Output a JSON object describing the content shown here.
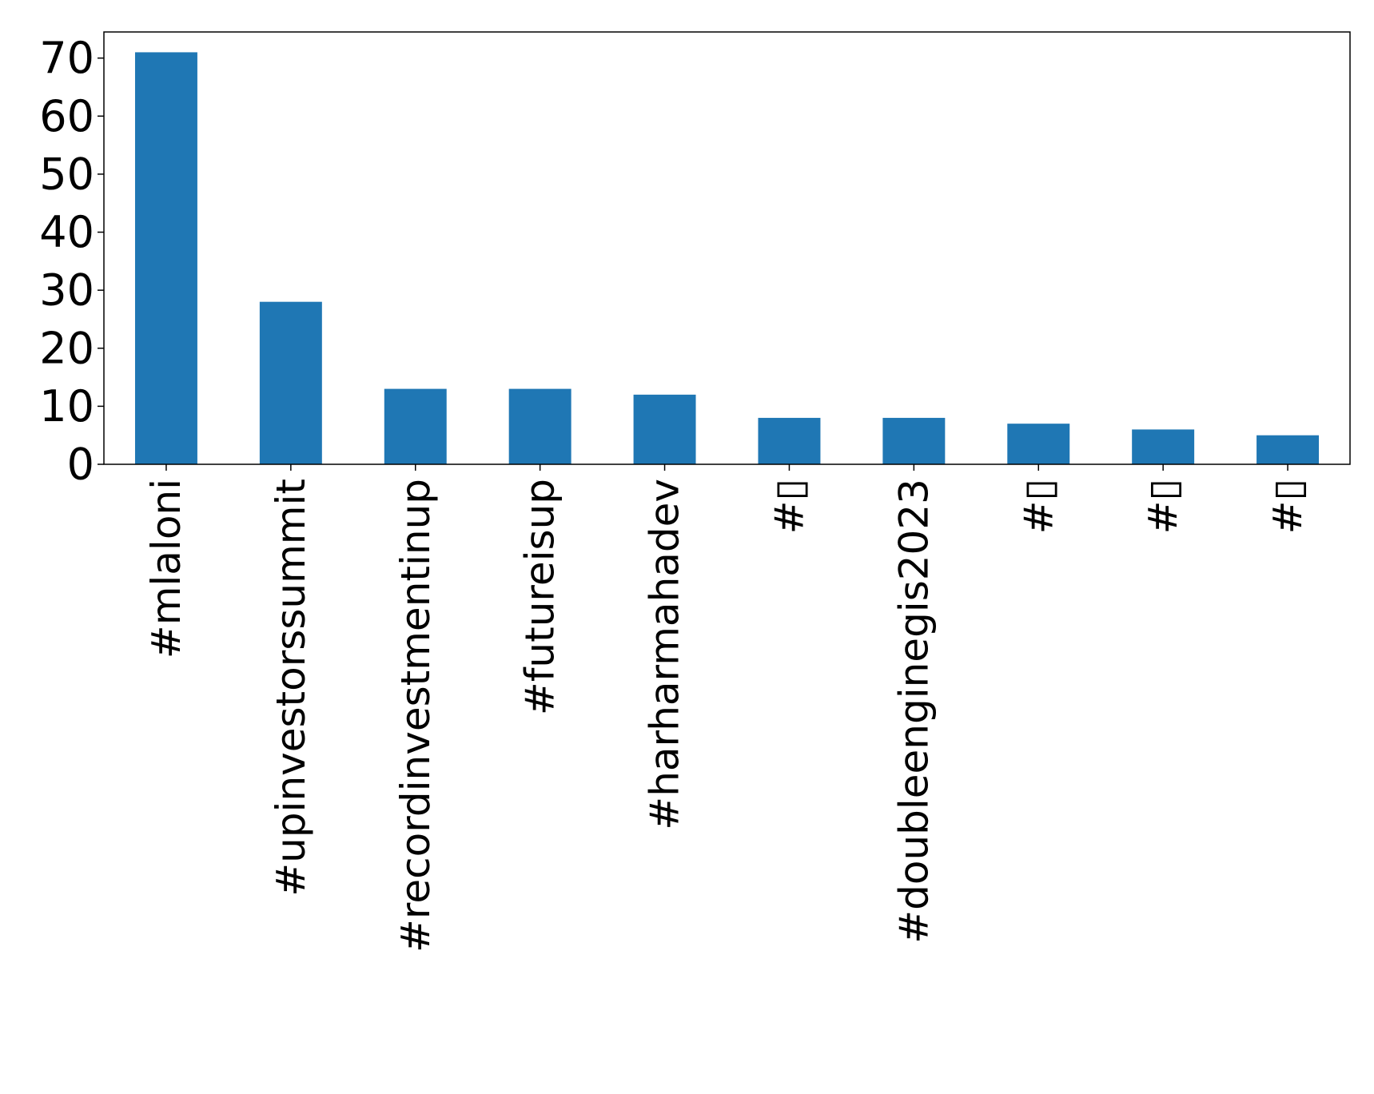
{
  "chart_data": {
    "type": "bar",
    "categories": [
      "#mlaloni",
      "#upinvestorssummit",
      "#recordinvestmentinup",
      "#futureisup",
      "#harharmahadev",
      "#▯",
      "#doubleenginegis2023",
      "#▯",
      "#▯",
      "#▯"
    ],
    "values": [
      71,
      28,
      13,
      13,
      12,
      8,
      8,
      7,
      6,
      5
    ],
    "ylim": [
      0,
      74.5
    ],
    "yticks": [
      0,
      10,
      20,
      30,
      40,
      50,
      60,
      70
    ],
    "title": "",
    "xlabel": "",
    "ylabel": "",
    "bar_color": "#1f77b4",
    "grid": false,
    "legend": "none"
  }
}
